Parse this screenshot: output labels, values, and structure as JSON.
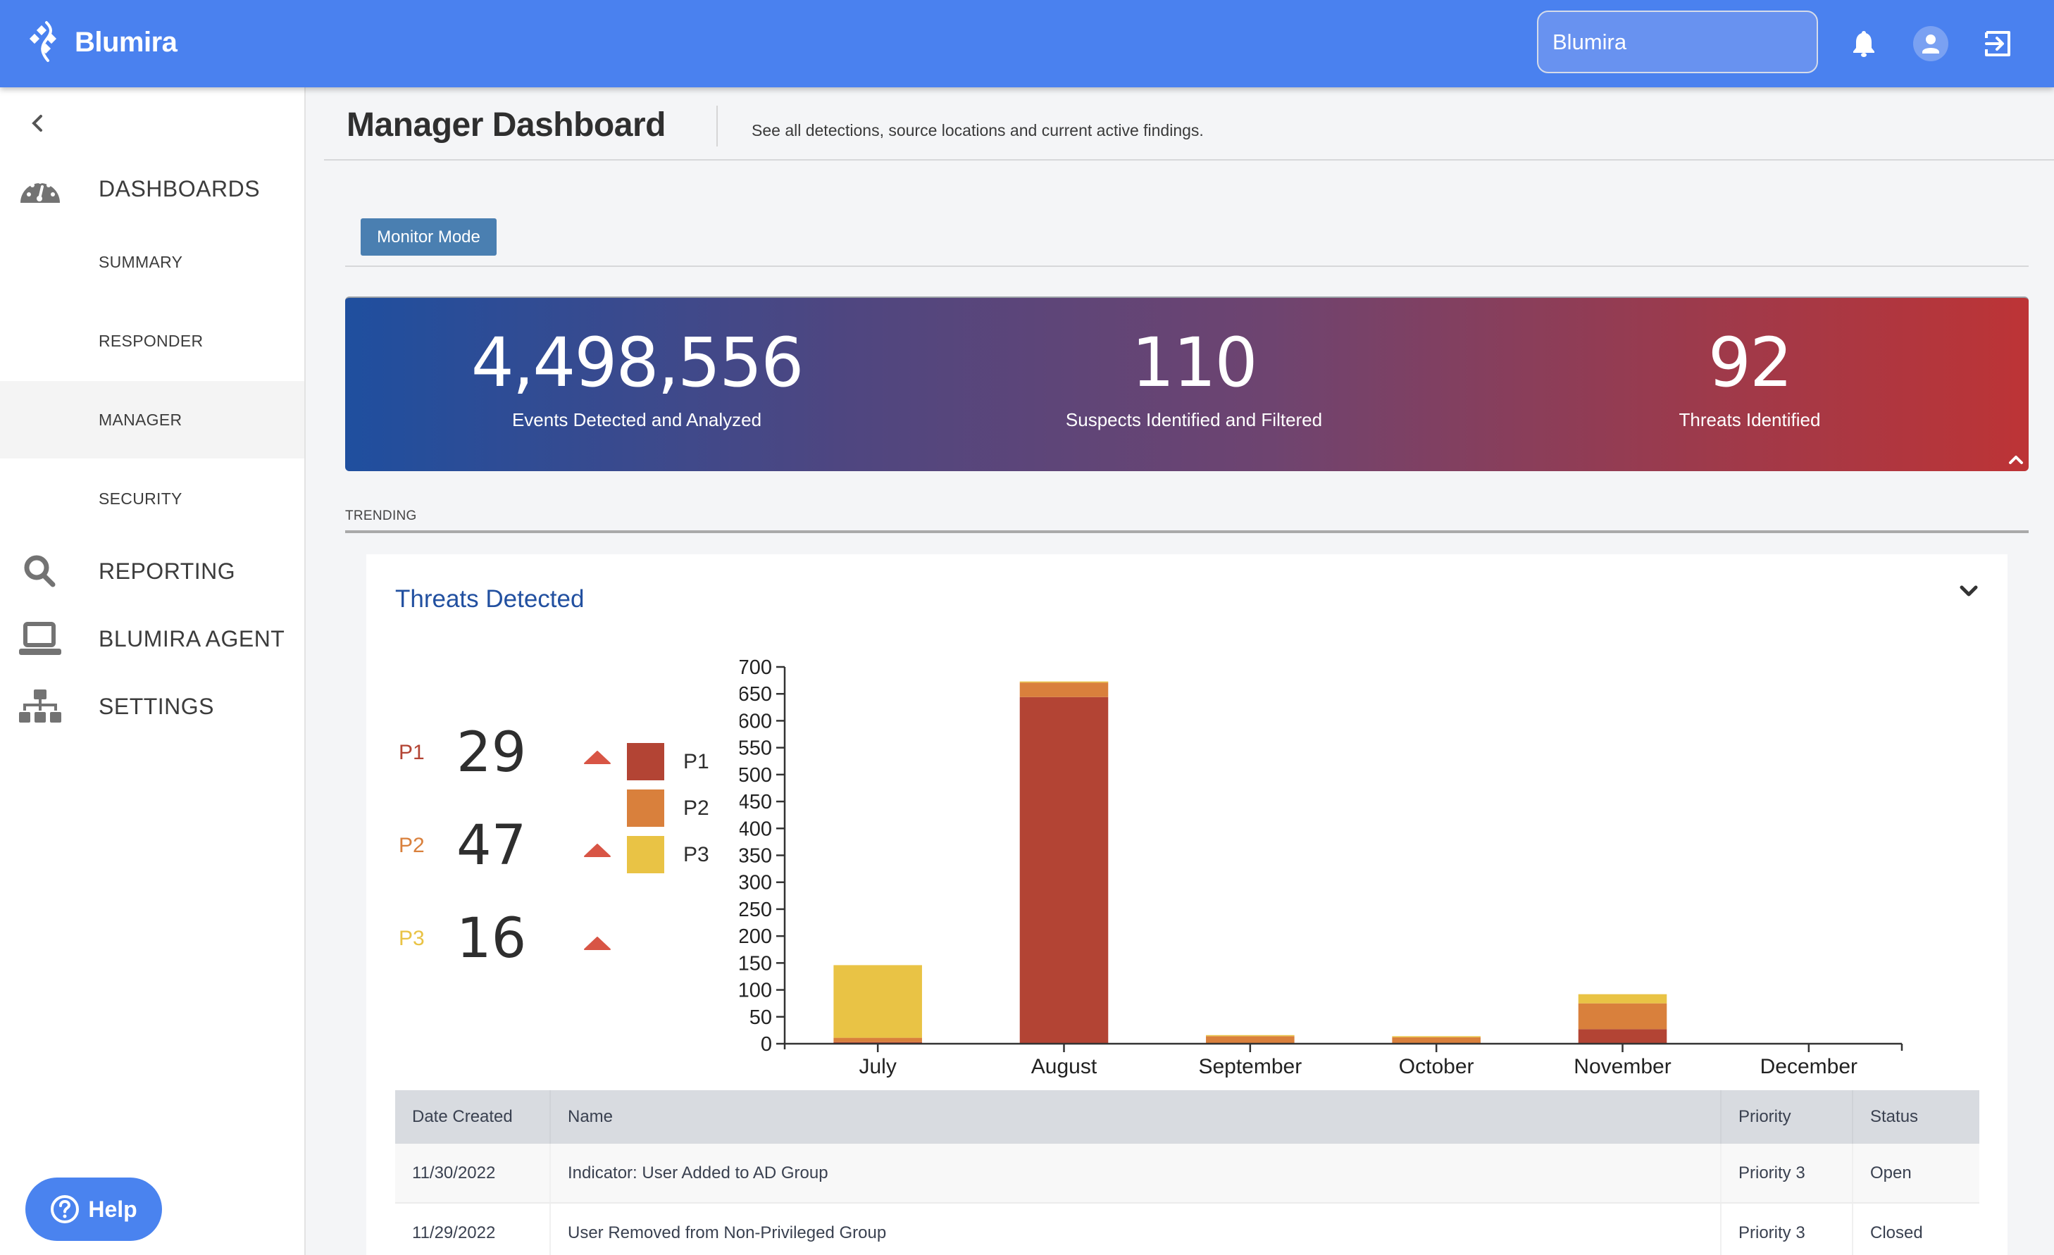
{
  "header": {
    "brand": "Blumira",
    "org_selector": "Blumira",
    "icons": [
      "bell-icon",
      "user-avatar-icon",
      "logout-icon"
    ],
    "accent_color": "#4a81ef"
  },
  "sidebar": {
    "items": [
      {
        "label": "DASHBOARDS",
        "icon": "dashboard-gauge-icon",
        "type": "section"
      },
      {
        "label": "SUMMARY",
        "type": "sub"
      },
      {
        "label": "RESPONDER",
        "type": "sub"
      },
      {
        "label": "MANAGER",
        "type": "sub",
        "active": true
      },
      {
        "label": "SECURITY",
        "type": "sub"
      },
      {
        "label": "REPORTING",
        "icon": "search-icon",
        "type": "section"
      },
      {
        "label": "BLUMIRA AGENT",
        "icon": "laptop-icon",
        "type": "section"
      },
      {
        "label": "SETTINGS",
        "icon": "sitemap-icon",
        "type": "section"
      }
    ],
    "help_label": "Help"
  },
  "page": {
    "title": "Manager Dashboard",
    "subtitle": "See all detections, source locations and current active findings.",
    "monitor_mode_label": "Monitor Mode"
  },
  "banner": {
    "stats": [
      {
        "value": "4,498,556",
        "label": "Events Detected and Analyzed"
      },
      {
        "value": "110",
        "label": "Suspects Identified and Filtered"
      },
      {
        "value": "92",
        "label": "Threats Identified"
      }
    ]
  },
  "trending": {
    "label": "TRENDING"
  },
  "threats_card": {
    "title": "Threats Detected",
    "priorities": [
      {
        "label": "P1",
        "value": "29",
        "trend": "up",
        "color": "#b34434"
      },
      {
        "label": "P2",
        "value": "47",
        "trend": "up",
        "color": "#d9803c"
      },
      {
        "label": "P3",
        "value": "16",
        "trend": "up",
        "color": "#e9c345"
      }
    ],
    "trend_arrow_color": "#d85545"
  },
  "chart_data": {
    "type": "bar",
    "stacked": true,
    "title": "Threats Detected",
    "categories": [
      "July",
      "August",
      "September",
      "October",
      "November",
      "December"
    ],
    "series": [
      {
        "name": "P1",
        "color": "#b34434",
        "values": [
          3,
          644,
          0,
          0,
          27,
          0
        ]
      },
      {
        "name": "P2",
        "color": "#d9803c",
        "values": [
          8,
          27,
          14,
          12,
          48,
          0
        ]
      },
      {
        "name": "P3",
        "color": "#e9c345",
        "values": [
          135,
          2,
          2,
          2,
          17,
          0
        ]
      }
    ],
    "ylim": [
      0,
      700
    ],
    "yticks": [
      0,
      50,
      100,
      150,
      200,
      250,
      300,
      350,
      400,
      450,
      500,
      550,
      600,
      650,
      700
    ],
    "xlabel": "",
    "ylabel": "",
    "legend": "left",
    "grid": false
  },
  "table": {
    "columns": [
      "Date Created",
      "Name",
      "Priority",
      "Status"
    ],
    "rows": [
      [
        "11/30/2022",
        "Indicator: User Added to AD Group",
        "Priority 3",
        "Open"
      ],
      [
        "11/29/2022",
        "User Removed from Non-Privileged Group",
        "Priority 3",
        "Closed"
      ]
    ]
  }
}
